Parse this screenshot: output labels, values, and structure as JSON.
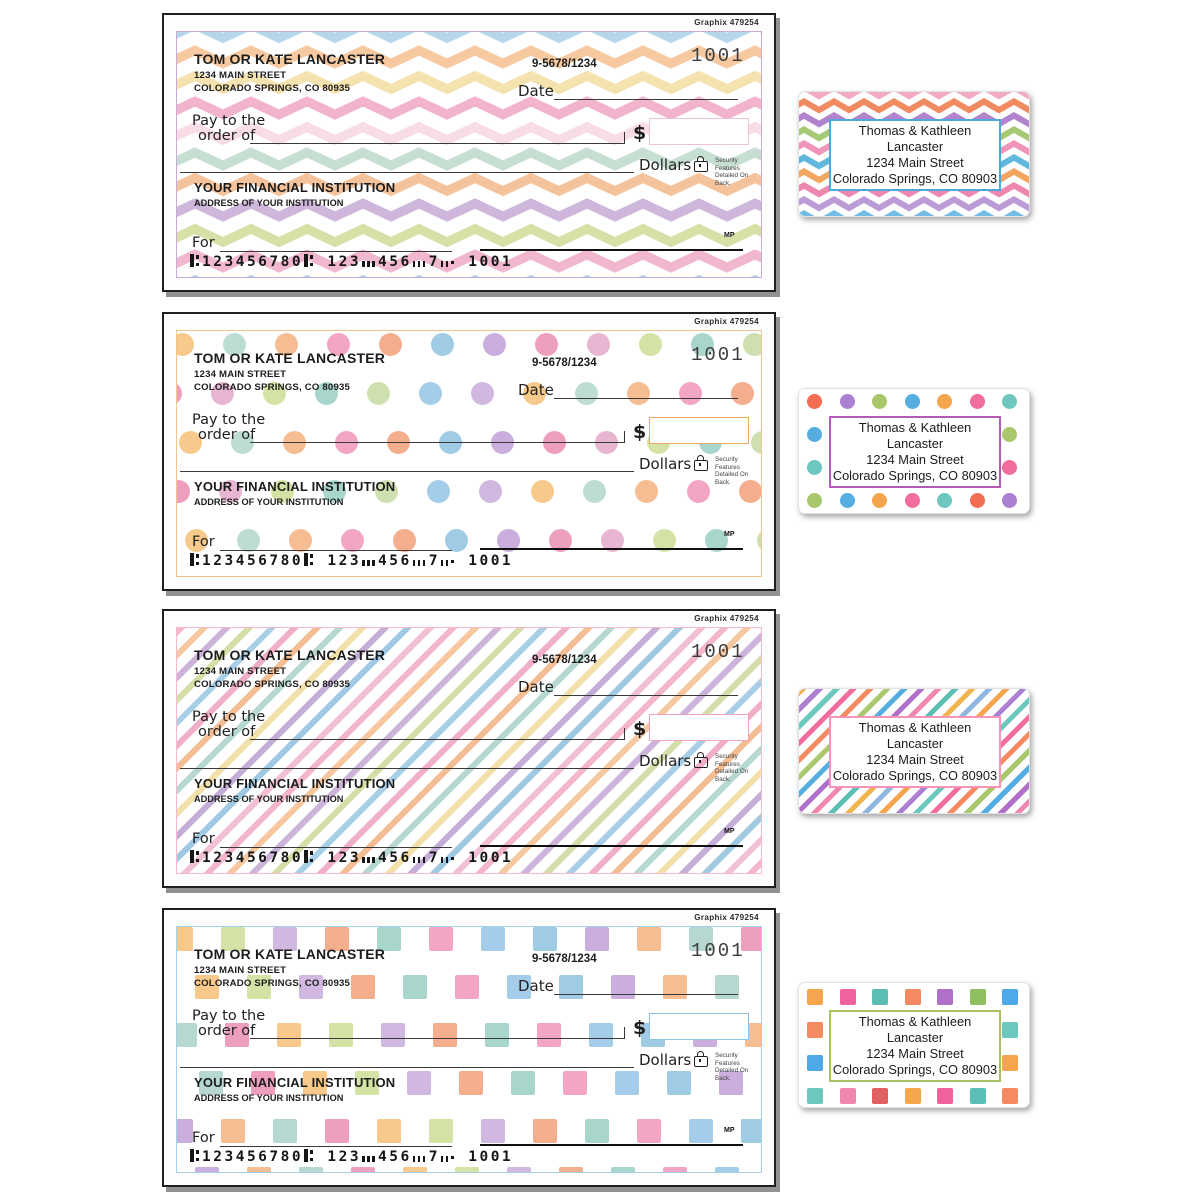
{
  "check": {
    "brand_code": "Graphix  479254",
    "payor": {
      "name": "TOM OR KATE LANCASTER",
      "address_line1": "1234 MAIN STREET",
      "address_line2": "COLORADO SPRINGS, CO 80935"
    },
    "fraction": "9-5678/1234",
    "check_number": "1001",
    "date_label": "Date",
    "pay_to_line1": "Pay to the",
    "pay_to_line2": "order of",
    "dollar_sign": "$",
    "dollars_label": "Dollars",
    "security_note": {
      "line1": "Security Features",
      "line2": "Detailed On Back."
    },
    "institution": {
      "name": "YOUR FINANCIAL INSTITUTION",
      "address": "ADDRESS OF YOUR INSTITUTION"
    },
    "for_label": "For",
    "mp_mark": "MP",
    "micr_line": "⑆123456780⑆  123⑇456⑇7⑈  1001",
    "security_icon": "lock-icon"
  },
  "address_label": {
    "line1": "Thomas & Kathleen",
    "line2": "Lancaster",
    "line3": "1234 Main Street",
    "line4": "Colorado Springs, CO 80903"
  },
  "designs": [
    {
      "id": "chevron",
      "pattern": "chevron",
      "check_frame_color": "#c9abd9",
      "amount_box_border_color": "#ecc3d2",
      "label_box_border_color": "#4fa8dc",
      "check_pattern_colors": [
        "#b7d7ea",
        "#f6c9a1",
        "#f4e2af",
        "#f2b4cd",
        "#f8dde8",
        "#c7ded3",
        "#f4c39c",
        "#cfb6db",
        "#d7e1a7",
        "#f1b7ce"
      ],
      "label_pattern_colors": [
        "#f2a9c3",
        "#f08a60",
        "#b184cd",
        "#a7c874",
        "#f194b9",
        "#60b7dc",
        "#f3a65f",
        "#ee87af",
        "#bc9cd7",
        "#73bde5",
        "#f5b367",
        "#ec9ebe",
        "#6dc1bb"
      ]
    },
    {
      "id": "dots",
      "pattern": "dots",
      "check_frame_color": "#f4c48e",
      "amount_box_border_color": "#eda965",
      "label_box_border_color": "#b35ab5",
      "check_pattern_colors": [
        "#f7c98b",
        "#f2a6c4",
        "#c9aede",
        "#d4e3a5",
        "#a3cde8",
        "#bcdcd4",
        "#f4ae8e",
        "#ef9fbe",
        "#a9d6cc",
        "#d0b8e0",
        "#f6bd92",
        "#9fcbe5",
        "#e8b6d2",
        "#cfe0b0"
      ],
      "label_pattern_colors": [
        "#f26d52",
        "#ab7fd1",
        "#a9c86b",
        "#56aee0",
        "#f5a54c",
        "#f06d9d",
        "#6cc7bf"
      ]
    },
    {
      "id": "stripes",
      "pattern": "stripes",
      "check_frame_color": "#f6b9cd",
      "amount_box_border_color": "#f2a2c0",
      "label_box_border_color": "#f693b8",
      "check_pattern_colors": [
        "#f3b6cb",
        "#f6c8a2",
        "#cdb3da",
        "#d4dfa8",
        "#a9cfe8",
        "#f0aec8",
        "#f5bd93",
        "#b7d8d0",
        "#f2dfa9",
        "#c4aed8",
        "#9fc8e2",
        "#f1c0d4"
      ],
      "label_pattern_colors": [
        "#f5a54c",
        "#ab7fd1",
        "#6cc7bf",
        "#f06d9d",
        "#f58a62",
        "#a9c86b",
        "#56aee0",
        "#b06fc9",
        "#ef87b0",
        "#5bbfb6",
        "#f2b44f",
        "#8fb8e0"
      ]
    },
    {
      "id": "squares",
      "pattern": "squares",
      "check_frame_color": "#a3d0ea",
      "amount_box_border_color": "#8fc2e2",
      "label_box_border_color": "#a6c35f",
      "check_pattern_colors": [
        "#f7c98b",
        "#f2a6c4",
        "#b7d8d0",
        "#f4ae8e",
        "#c9aede",
        "#d4e3a5",
        "#a3cde8",
        "#ef9fbe",
        "#a9d6cc",
        "#f6bd92",
        "#d0b8e0",
        "#9fcbe5"
      ],
      "label_pattern_colors": [
        "#f5a54c",
        "#f0629d",
        "#5bbfb6",
        "#f58a62",
        "#b06fc9",
        "#8fc05f",
        "#4fa8e8",
        "#f2b44f",
        "#ab7fd1",
        "#6cc7bf",
        "#ef87b0",
        "#e06060"
      ]
    }
  ]
}
